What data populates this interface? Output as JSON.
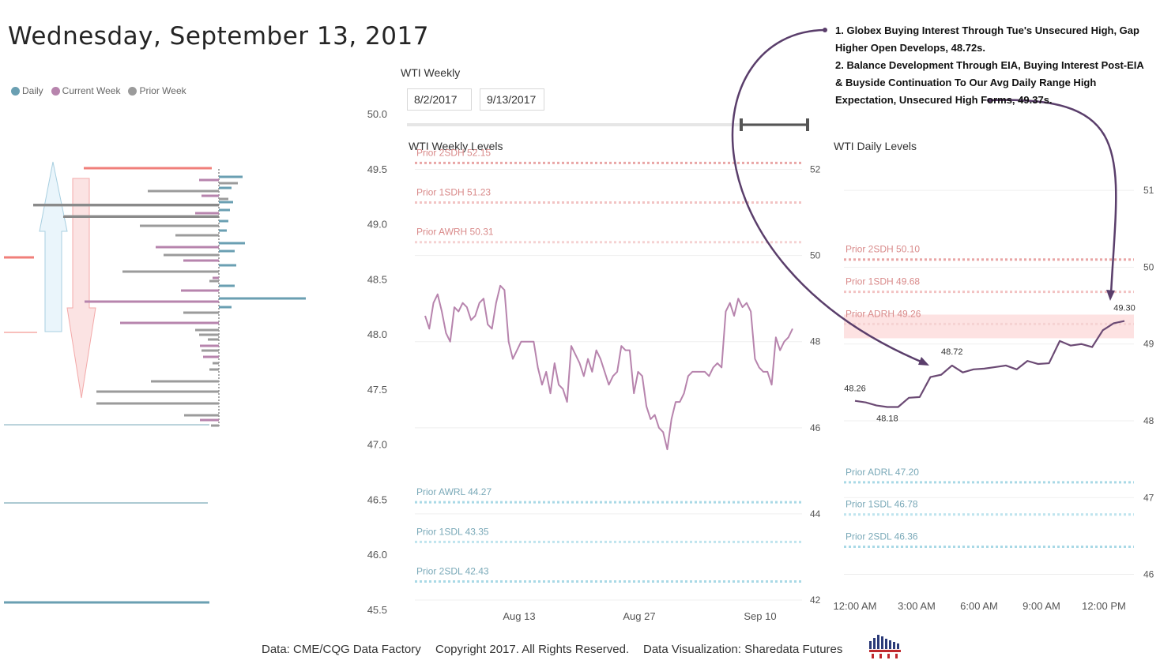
{
  "title": "Wednesday, September 13, 2017",
  "legend": [
    {
      "label": "Daily",
      "color": "#6a9fb2"
    },
    {
      "label": "Current Week",
      "color": "#b784ad"
    },
    {
      "label": "Prior Week",
      "color": "#9b9b9b"
    }
  ],
  "slicer": {
    "label": "WTI Weekly",
    "start": "8/2/2017",
    "end": "9/13/2017"
  },
  "notes": {
    "line1": "1. Globex Buying Interest Through Tue's Unsecured High, Gap Higher Open Develops, 48.72s.",
    "line2": "2. Balance Development Through EIA, Buying Interest Post-EIA & Buyside Continuation To Our Avg Daily Range High Expectation, Unsecured High Forms, 49.37s."
  },
  "footer": {
    "data": "Data: CME/CQG Data Factory",
    "copyright": "Copyright 2017. All Rights Reserved.",
    "viz": "Data Visualization: Sharedata Futures"
  },
  "chart_data": [
    {
      "type": "bar",
      "name": "profile",
      "ylim": [
        45.5,
        50.0
      ],
      "yticks": [
        50.0,
        49.5,
        49.0,
        48.5,
        48.0,
        47.5,
        47.0,
        46.5,
        46.0,
        45.5
      ],
      "ytick_labels": [
        "50.0",
        "49.5",
        "49.0",
        "48.5",
        "48.0",
        "47.5",
        "47.0",
        "46.5",
        "46.0",
        "45.5"
      ]
    },
    {
      "type": "line",
      "title": "WTI Weekly Levels",
      "ylim": [
        42,
        53
      ],
      "yticks": [
        52,
        50,
        48,
        46,
        44,
        42
      ],
      "xticks": [
        "Aug 13",
        "Aug 27",
        "Sep 10"
      ],
      "levels": [
        {
          "label": "Prior 2SDH 52.15",
          "value": 52.15,
          "color": "#e9a6a6"
        },
        {
          "label": "Prior 1SDH 51.23",
          "value": 51.23,
          "color": "#f2c3c3"
        },
        {
          "label": "Prior AWRH 50.31",
          "value": 50.31,
          "color": "#f5d2d2"
        },
        {
          "label": "Prior AWRL 44.27",
          "value": 44.27,
          "color": "#a9d9e6"
        },
        {
          "label": "Prior 1SDL 43.35",
          "value": 43.35,
          "color": "#bfe4ee"
        },
        {
          "label": "Prior 2SDL 42.43",
          "value": 42.43,
          "color": "#a9d9e6"
        }
      ],
      "series": [
        {
          "color": "#b784ad",
          "values": [
            48.6,
            48.3,
            48.9,
            49.1,
            48.7,
            48.2,
            48.0,
            48.8,
            48.7,
            48.9,
            48.8,
            48.5,
            48.6,
            48.9,
            49.0,
            48.4,
            48.3,
            48.9,
            49.3,
            49.2,
            48.0,
            47.6,
            47.8,
            48.0,
            48.0,
            48.0,
            48.0,
            47.4,
            47.0,
            47.3,
            46.8,
            47.5,
            47.0,
            46.9,
            46.6,
            47.9,
            47.7,
            47.5,
            47.2,
            47.6,
            47.3,
            47.8,
            47.6,
            47.3,
            47.0,
            47.2,
            47.3,
            47.9,
            47.8,
            47.8,
            46.8,
            47.3,
            47.2,
            46.5,
            46.2,
            46.3,
            46.0,
            45.9,
            45.5,
            46.2,
            46.6,
            46.6,
            46.8,
            47.2,
            47.3,
            47.3,
            47.3,
            47.3,
            47.2,
            47.4,
            47.5,
            47.4,
            48.7,
            48.9,
            48.6,
            49.0,
            48.8,
            48.9,
            48.7,
            47.6,
            47.4,
            47.3,
            47.3,
            47.0,
            48.1,
            47.8,
            48.0,
            48.1,
            48.3
          ]
        }
      ]
    },
    {
      "type": "line",
      "title": "WTI Daily Levels",
      "ylim": [
        45.8,
        51.3
      ],
      "yticks": [
        51,
        50,
        49,
        48,
        47,
        46
      ],
      "xticks": [
        "12:00 AM",
        "3:00 AM",
        "6:00 AM",
        "9:00 AM",
        "12:00 PM"
      ],
      "levels": [
        {
          "label": "Prior 2SDH 50.10",
          "value": 50.1,
          "color": "#e9a6a6"
        },
        {
          "label": "Prior 1SDH 49.68",
          "value": 49.68,
          "color": "#f2c3c3"
        },
        {
          "label": "Prior ADRH 49.26",
          "value": 49.26,
          "color": "#f5d2d2"
        },
        {
          "label": "Prior ADRL 47.20",
          "value": 47.2,
          "color": "#a9d9e6"
        },
        {
          "label": "Prior 1SDL 46.78",
          "value": 46.78,
          "color": "#bfe4ee"
        },
        {
          "label": "Prior 2SDL 46.36",
          "value": 46.36,
          "color": "#a9d9e6"
        }
      ],
      "series": [
        {
          "color": "#6b4a74",
          "values": [
            48.26,
            48.24,
            48.2,
            48.18,
            48.18,
            48.3,
            48.31,
            48.57,
            48.6,
            48.72,
            48.63,
            48.67,
            48.68,
            48.7,
            48.72,
            48.67,
            48.78,
            48.74,
            48.75,
            49.04,
            48.98,
            49.0,
            48.96,
            49.18,
            49.27,
            49.3
          ]
        }
      ],
      "data_labels": [
        "48.26",
        "48.18",
        "48.72",
        "49.30"
      ]
    }
  ]
}
